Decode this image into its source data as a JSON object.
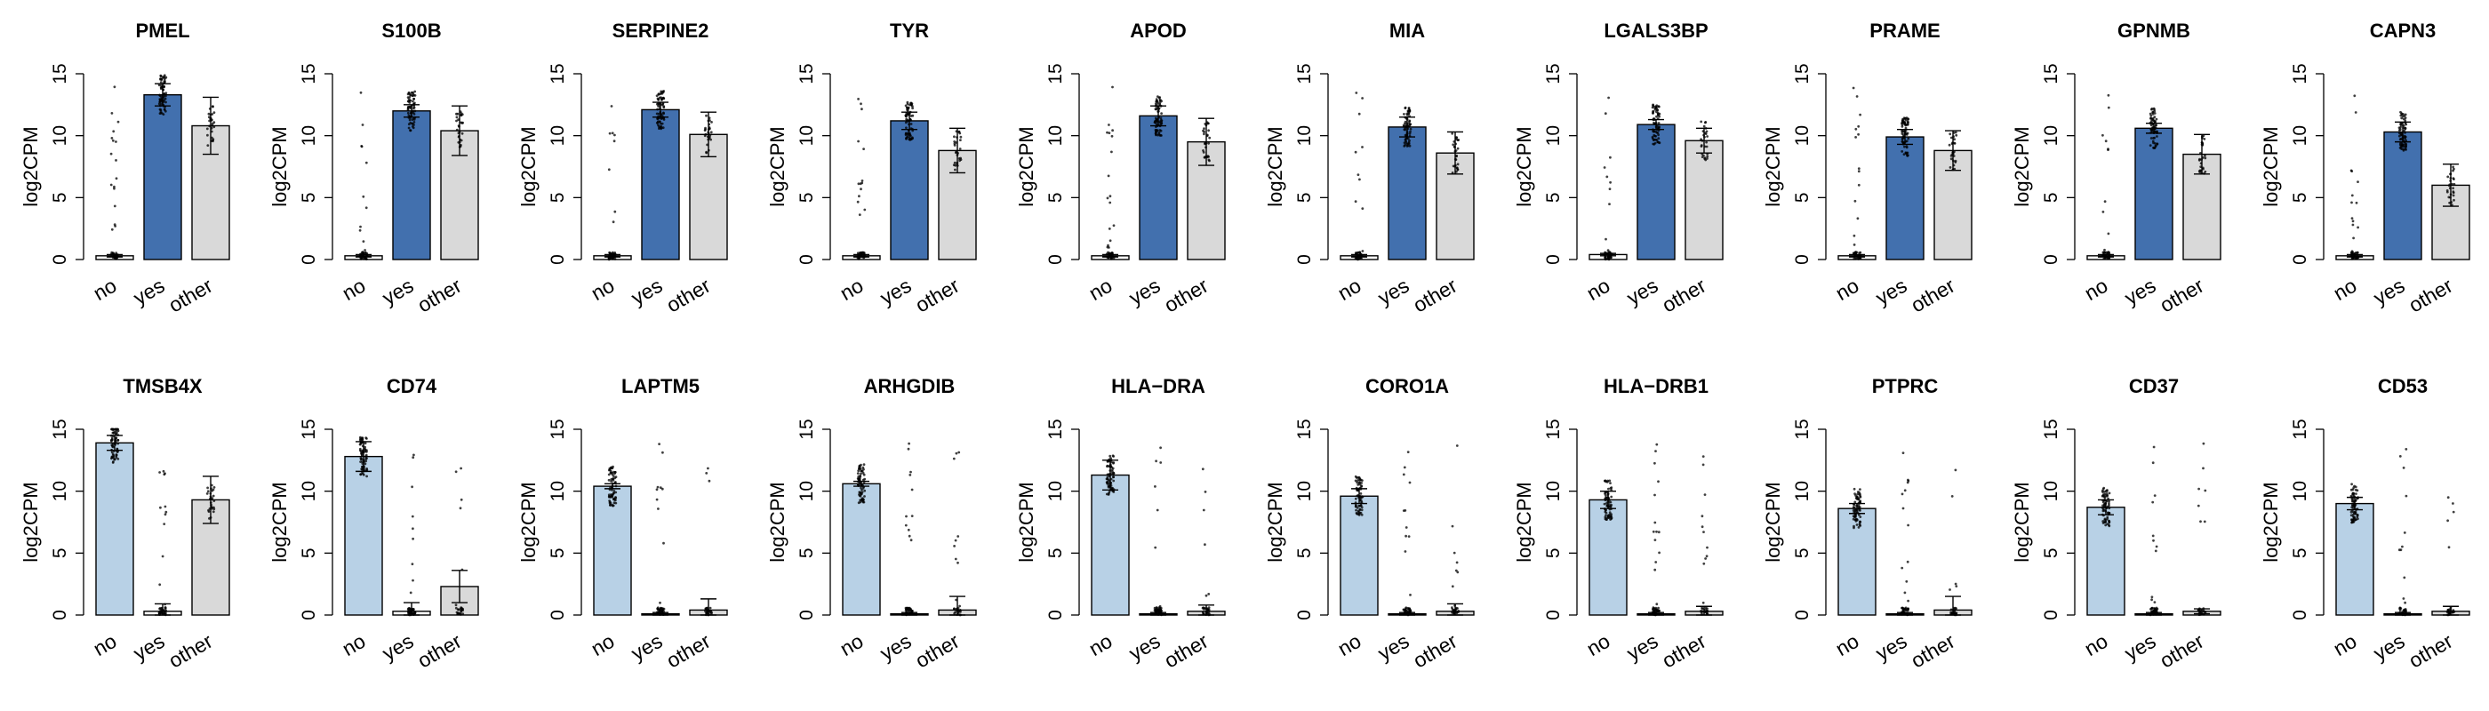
{
  "colors": {
    "yes_dark": "#4270AE",
    "no_light": "#B8D1E6",
    "other": "#D9D9D9",
    "default": "#FFFFFF",
    "points": "#000000"
  },
  "chart_data": {
    "type": "bar",
    "ylabel": "log2CPM",
    "categories": [
      "no",
      "yes",
      "other"
    ],
    "ylim": [
      0,
      15
    ],
    "yticks": [
      0,
      5,
      10,
      15
    ],
    "rows": [
      {
        "highlight": "yes",
        "highlight_color": "yes_dark",
        "panels": [
          {
            "title": "PMEL",
            "values": [
              0.3,
              13.3,
              10.8
            ],
            "errors": [
              0.1,
              0.9,
              2.3
            ]
          },
          {
            "title": "S100B",
            "values": [
              0.3,
              12.0,
              10.4
            ],
            "errors": [
              0.1,
              0.5,
              2.0
            ]
          },
          {
            "title": "SERPINE2",
            "values": [
              0.3,
              12.1,
              10.1
            ],
            "errors": [
              0.1,
              0.6,
              1.8
            ]
          },
          {
            "title": "TYR",
            "values": [
              0.3,
              11.2,
              8.8
            ],
            "errors": [
              0.1,
              0.7,
              1.8
            ]
          },
          {
            "title": "APOD",
            "values": [
              0.3,
              11.6,
              9.5
            ],
            "errors": [
              0.1,
              0.8,
              1.9
            ]
          },
          {
            "title": "MIA",
            "values": [
              0.3,
              10.7,
              8.6
            ],
            "errors": [
              0.1,
              0.8,
              1.7
            ]
          },
          {
            "title": "LGALS3BP",
            "values": [
              0.4,
              10.9,
              9.6
            ],
            "errors": [
              0.1,
              0.4,
              1.0
            ]
          },
          {
            "title": "PRAME",
            "values": [
              0.3,
              9.9,
              8.8
            ],
            "errors": [
              0.1,
              0.6,
              1.6
            ]
          },
          {
            "title": "GPNMB",
            "values": [
              0.3,
              10.6,
              8.5
            ],
            "errors": [
              0.1,
              0.4,
              1.6
            ]
          },
          {
            "title": "CAPN3",
            "values": [
              0.3,
              10.3,
              6.0
            ],
            "errors": [
              0.1,
              0.8,
              1.7
            ]
          }
        ]
      },
      {
        "highlight": "no",
        "highlight_color": "no_light",
        "panels": [
          {
            "title": "TMSB4X",
            "values": [
              13.9,
              0.3,
              9.3
            ],
            "errors": [
              0.6,
              0.6,
              1.9
            ]
          },
          {
            "title": "CD74",
            "values": [
              12.8,
              0.3,
              2.3
            ],
            "errors": [
              1.2,
              0.7,
              1.3
            ]
          },
          {
            "title": "LAPTM5",
            "values": [
              10.4,
              0.1,
              0.4
            ],
            "errors": [
              0.2,
              0.1,
              0.9
            ]
          },
          {
            "title": "ARHGDIB",
            "values": [
              10.6,
              0.1,
              0.4
            ],
            "errors": [
              0.2,
              0.1,
              1.1
            ]
          },
          {
            "title": "HLA−DRA",
            "values": [
              11.3,
              0.1,
              0.3
            ],
            "errors": [
              1.2,
              0.1,
              0.5
            ]
          },
          {
            "title": "CORO1A",
            "values": [
              9.6,
              0.1,
              0.3
            ],
            "errors": [
              0.6,
              0.1,
              0.6
            ]
          },
          {
            "title": "HLA−DRB1",
            "values": [
              9.3,
              0.1,
              0.3
            ],
            "errors": [
              0.7,
              0.1,
              0.4
            ]
          },
          {
            "title": "PTPRC",
            "values": [
              8.6,
              0.1,
              0.4
            ],
            "errors": [
              0.4,
              0.1,
              1.1
            ]
          },
          {
            "title": "CD37",
            "values": [
              8.7,
              0.1,
              0.3
            ],
            "errors": [
              0.6,
              0.1,
              0.2
            ]
          },
          {
            "title": "CD53",
            "values": [
              9.0,
              0.1,
              0.3
            ],
            "errors": [
              0.5,
              0.1,
              0.4
            ]
          }
        ]
      }
    ]
  }
}
